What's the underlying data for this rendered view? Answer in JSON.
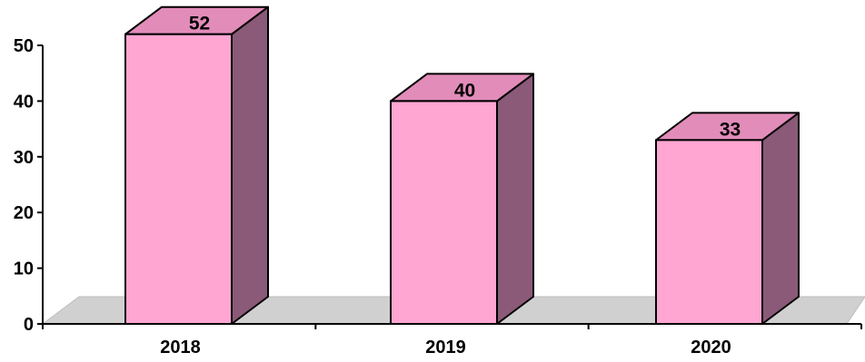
{
  "chart_data": {
    "type": "bar",
    "style": "3d-column",
    "categories": [
      "2018",
      "2019",
      "2020"
    ],
    "values": [
      52,
      40,
      33
    ],
    "data_labels": [
      "52",
      "40",
      "33"
    ],
    "title": "",
    "xlabel": "",
    "ylabel": "",
    "ylim": [
      0,
      50
    ],
    "yticks": [
      0,
      10,
      20,
      30,
      40,
      50
    ],
    "grid": false,
    "legend": "none",
    "colors": {
      "bar_front": "#FFA6D2",
      "bar_top": "#E28CBA",
      "bar_side": "#8A5A78",
      "floor": "#D0D0D0",
      "axis": "#000000"
    }
  }
}
